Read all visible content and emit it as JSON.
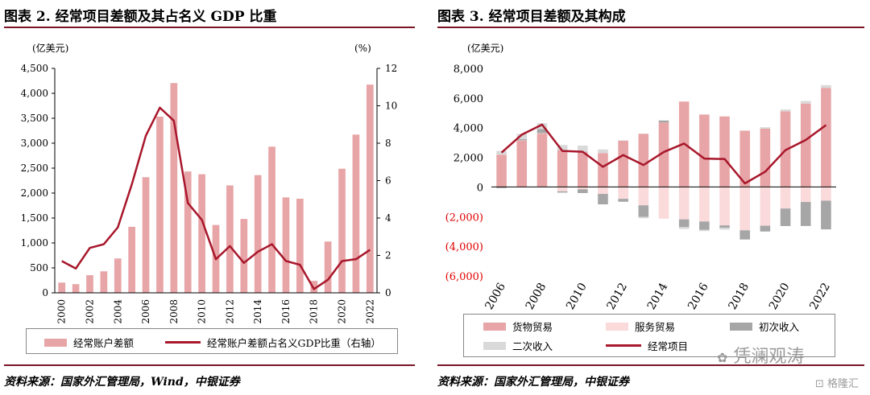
{
  "left": {
    "title": "图表 2. 经常项目差额及其占名义 GDP 比重",
    "source": "资料来源：国家外汇管理局，Wind，中银证券",
    "legend": [
      "经常账户差额",
      "经常账户差额占名义GDP比重（右轴）"
    ]
  },
  "right": {
    "title": "图表 3. 经常项目差额及其构成",
    "source": "资料来源：国家外汇管理局，中银证券",
    "legend": [
      "货物贸易",
      "服务贸易",
      "初次收入",
      "二次收入",
      "经常项目"
    ]
  },
  "watermark": {
    "brand": "凭澜观涛",
    "logo": "格隆汇"
  },
  "colors": {
    "bar": "#e8a5a7",
    "line": "#a8172b",
    "goods": "#e8a5a7",
    "services": "#fadadb",
    "primary": "#a6a6a6",
    "secondary": "#d9d9d9",
    "rule": "#7a1526"
  },
  "chart_data": [
    {
      "type": "bar",
      "title": "图表 2. 经常项目差额及其占名义 GDP 比重",
      "ylabel": "(亿美元)",
      "y2label": "(%)",
      "ylim": [
        0,
        4500
      ],
      "y2lim": [
        0,
        12
      ],
      "yticks": [
        "0",
        "500",
        "1,000",
        "1,500",
        "2,000",
        "2,500",
        "3,000",
        "3,500",
        "4,000",
        "4,500"
      ],
      "y2ticks": [
        "0",
        "2",
        "4",
        "6",
        "8",
        "10",
        "12"
      ],
      "xticks": [
        "2000",
        "2002",
        "2004",
        "2006",
        "2008",
        "2010",
        "2012",
        "2014",
        "2016",
        "2018",
        "2020",
        "2022"
      ],
      "years": [
        2000,
        2001,
        2002,
        2003,
        2004,
        2005,
        2006,
        2007,
        2008,
        2009,
        2010,
        2011,
        2012,
        2013,
        2014,
        2015,
        2016,
        2017,
        2018,
        2019,
        2020,
        2021,
        2022
      ],
      "series": [
        {
          "name": "经常账户差额",
          "type": "bar",
          "axis": "left",
          "values": [
            205,
            174,
            354,
            431,
            689,
            1324,
            2318,
            3532,
            4206,
            2433,
            2378,
            1361,
            2154,
            1482,
            2360,
            2930,
            1913,
            1887,
            241,
            1029,
            2488,
            3173,
            4175
          ]
        },
        {
          "name": "经常账户差额占名义GDP比重（右轴）",
          "type": "line",
          "axis": "right",
          "values": [
            1.7,
            1.3,
            2.4,
            2.6,
            3.5,
            5.8,
            8.4,
            9.9,
            9.2,
            4.8,
            3.9,
            1.8,
            2.5,
            1.6,
            2.2,
            2.6,
            1.7,
            1.5,
            0.2,
            0.7,
            1.7,
            1.8,
            2.3
          ]
        }
      ]
    },
    {
      "type": "bar",
      "title": "图表 3. 经常项目差额及其构成",
      "ylabel": "(亿美元)",
      "ylim": [
        -6000,
        8000
      ],
      "yticks": [
        "(6,000)",
        "(4,000)",
        "(2,000)",
        "0",
        "2,000",
        "4,000",
        "6,000",
        "8,000"
      ],
      "xticks": [
        "2006",
        "2008",
        "2010",
        "2012",
        "2014",
        "2016",
        "2018",
        "2020",
        "2022"
      ],
      "years": [
        2006,
        2007,
        2008,
        2009,
        2010,
        2011,
        2012,
        2013,
        2014,
        2015,
        2016,
        2017,
        2018,
        2019,
        2020,
        2021,
        2022
      ],
      "series": [
        {
          "name": "货物贸易",
          "type": "stacked-bar",
          "values": [
            2177,
            3115,
            3599,
            2495,
            2381,
            2287,
            3116,
            3590,
            4350,
            5762,
            4889,
            4759,
            3801,
            3930,
            5111,
            5627,
            6686
          ]
        },
        {
          "name": "服务贸易",
          "type": "stacked-bar",
          "values": [
            -21,
            28,
            29,
            -294,
            -151,
            -468,
            -797,
            -1236,
            -2137,
            -2183,
            -2331,
            -2589,
            -2922,
            -2611,
            -1453,
            -1012,
            -923
          ]
        },
        {
          "name": "初次收入",
          "type": "stacked-bar",
          "values": [
            -51,
            80,
            286,
            -85,
            -259,
            -703,
            -199,
            -784,
            133,
            -522,
            -549,
            -165,
            -614,
            -392,
            -1182,
            -1620,
            -1936
          ]
        },
        {
          "name": "二次收入",
          "type": "stacked-bar",
          "values": [
            254,
            365,
            390,
            337,
            407,
            245,
            34,
            -88,
            14,
            -126,
            -95,
            -119,
            -24,
            103,
            119,
            178,
            186
          ]
        },
        {
          "name": "经常项目",
          "type": "line",
          "values": [
            2318,
            3532,
            4206,
            2433,
            2378,
            1361,
            2154,
            1482,
            2360,
            2930,
            1913,
            1887,
            241,
            1029,
            2488,
            3173,
            4175
          ]
        }
      ]
    }
  ]
}
